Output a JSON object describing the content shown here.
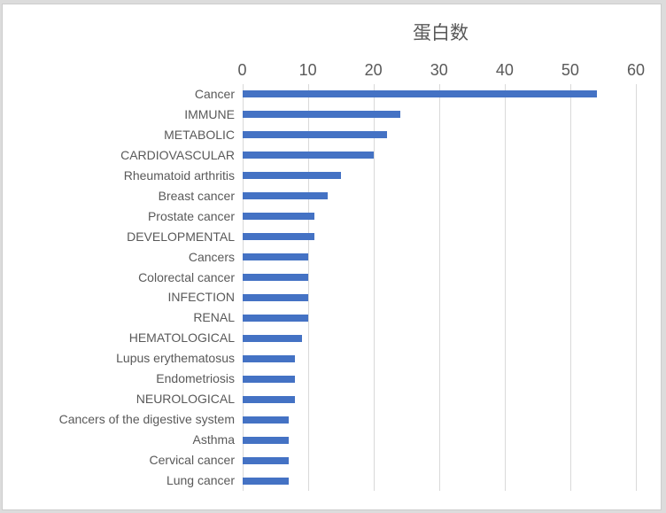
{
  "chart_data": {
    "type": "bar",
    "orientation": "horizontal",
    "title": "蛋白数",
    "categories": [
      "Cancer",
      "IMMUNE",
      "METABOLIC",
      "CARDIOVASCULAR",
      "Rheumatoid arthritis",
      "Breast cancer",
      "Prostate cancer",
      "DEVELOPMENTAL",
      "Cancers",
      "Colorectal cancer",
      "INFECTION",
      "RENAL",
      "HEMATOLOGICAL",
      "Lupus erythematosus",
      "Endometriosis",
      "NEUROLOGICAL",
      "Cancers of the digestive system",
      "Asthma",
      "Cervical cancer",
      "Lung cancer"
    ],
    "values": [
      54,
      24,
      22,
      20,
      15,
      13,
      11,
      11,
      10,
      10,
      10,
      10,
      9,
      8,
      8,
      8,
      7,
      7,
      7,
      7
    ],
    "xlabel": "",
    "ylabel": "",
    "xlim": [
      0,
      60
    ],
    "xticks": [
      0,
      10,
      20,
      30,
      40,
      50,
      60
    ],
    "grid": true,
    "legend": "none",
    "axis_position": "top",
    "bar_color": "#4472c4",
    "gridline_color": "#d9d9d9",
    "text_color": "#595959",
    "border_color": "#cccccc",
    "plot_background": "#ffffff",
    "outer_background": "#dcdcdc"
  }
}
